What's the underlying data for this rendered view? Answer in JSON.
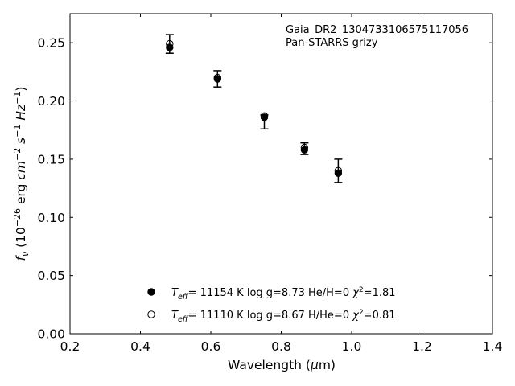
{
  "chart_data": {
    "type": "scatter",
    "xlabel": "Wavelength (μm)",
    "ylabel": "f_ν (10^−26 erg cm^−2 s^−1 Hz^−1)",
    "xlim": [
      0.2,
      1.4
    ],
    "ylim": [
      0.0,
      0.275
    ],
    "x_ticks": [
      "0.2",
      "0.4",
      "0.6",
      "0.8",
      "1.0",
      "1.2",
      "1.4"
    ],
    "y_ticks": [
      "0.00",
      "0.05",
      "0.10",
      "0.15",
      "0.20",
      "0.25"
    ],
    "annotation": [
      "Gaia_DR2_1304733106575117056",
      "Pan-STARRS grizy"
    ],
    "observed": {
      "x": [
        0.483,
        0.619,
        0.752,
        0.866,
        0.962
      ],
      "y": [
        0.249,
        0.219,
        0.182,
        0.159,
        0.14
      ],
      "err": [
        0.008,
        0.007,
        0.006,
        0.005,
        0.01
      ]
    },
    "series": [
      {
        "marker": "filled",
        "x": [
          0.483,
          0.619,
          0.752,
          0.866,
          0.962
        ],
        "y": [
          0.246,
          0.219,
          0.186,
          0.158,
          0.138
        ],
        "legend": {
          "teff_value": "= 11154 K",
          "rest": "log g=8.73  He/H=0",
          "chi_value": "=1.81"
        }
      },
      {
        "marker": "open",
        "x": [
          0.483,
          0.619,
          0.752,
          0.866,
          0.962
        ],
        "y": [
          0.249,
          0.22,
          0.187,
          0.16,
          0.14
        ],
        "legend": {
          "teff_value": "= 11110 K",
          "rest": "log g=8.67  H/He=0",
          "chi_value": "=0.81"
        }
      }
    ],
    "grid": false,
    "legend_position": "bottom-center"
  }
}
